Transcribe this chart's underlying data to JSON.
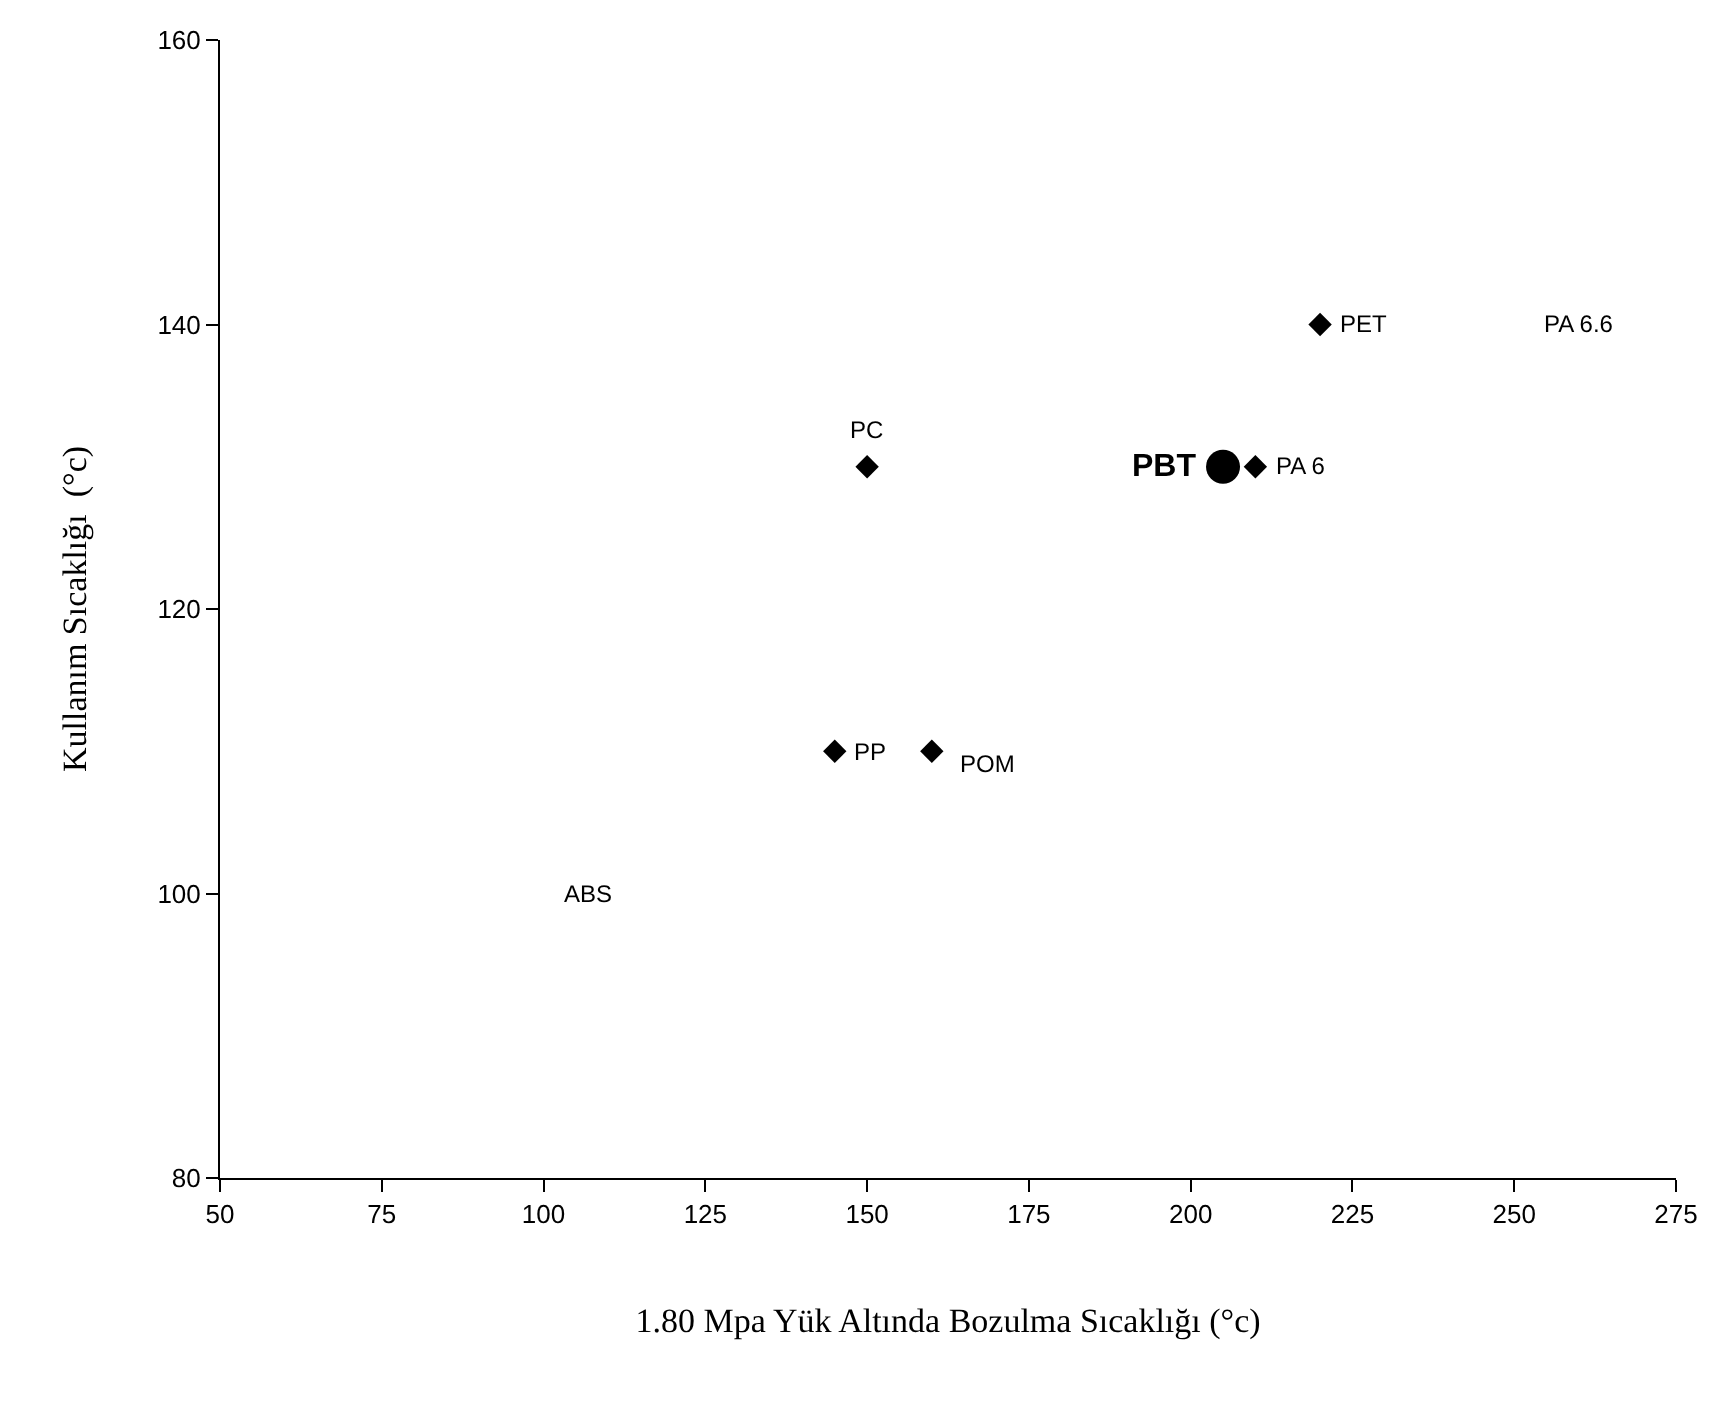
{
  "chart_data": {
    "type": "scatter",
    "xlabel": "1.80 Mpa Yük Altında Bozulma Sıcaklığı (°c)",
    "ylabel": "Kullanım Sıcaklığı  (°c)",
    "series": [
      {
        "color": "#000000",
        "marker": "diamond",
        "x": [
          150,
          220,
          210,
          145,
          160
        ],
        "values": [
          130,
          140,
          130,
          110,
          110
        ]
      },
      {
        "color": "#000000",
        "marker": "circle",
        "x": [
          205
        ],
        "values": [
          130
        ]
      }
    ],
    "xlim": [
      50,
      275
    ],
    "xticks": [
      50,
      75,
      100,
      125,
      150,
      175,
      200,
      225,
      250,
      275
    ],
    "ylim": [
      80,
      160
    ],
    "yticks": [
      80,
      100,
      120,
      140,
      160
    ],
    "grid": false,
    "annotations": [
      {
        "text": "PC",
        "x": 150,
        "y": 130
      },
      {
        "text": "PET",
        "x": 220,
        "y": 140
      },
      {
        "text": "PBT",
        "x": 205,
        "y": 130
      },
      {
        "text": "PA 6",
        "x": 210,
        "y": 130
      },
      {
        "text": "PP",
        "x": 145,
        "y": 110
      },
      {
        "text": "POM",
        "x": 160,
        "y": 110
      },
      "ABS",
      "PA 6.6"
    ]
  }
}
